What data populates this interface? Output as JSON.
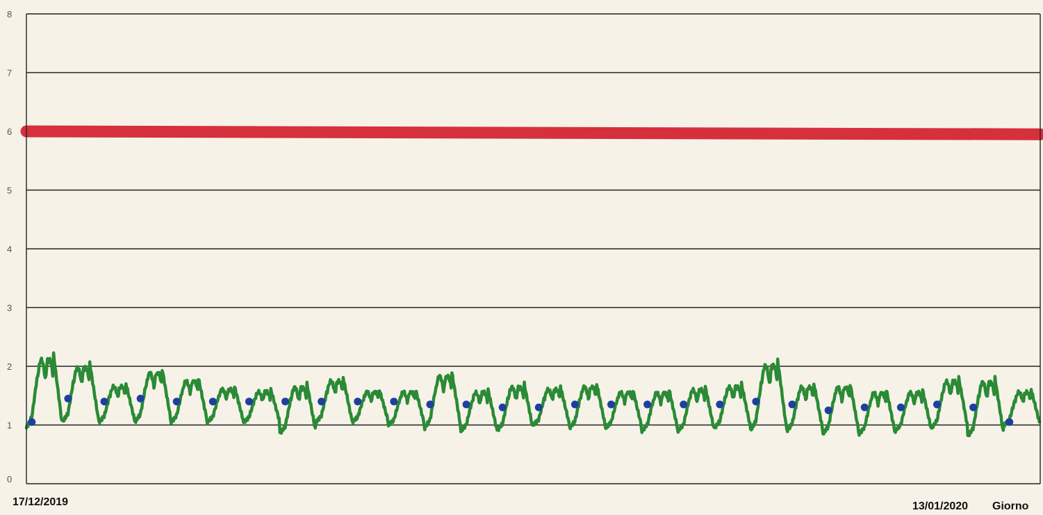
{
  "chart_data": {
    "type": "line",
    "title": "",
    "xlabel": "Giorno",
    "ylabel": "",
    "ylim": [
      0,
      8
    ],
    "yticks": [
      "0",
      "1",
      "2",
      "3",
      "4",
      "5",
      "6",
      "7",
      "8"
    ],
    "x_start_label": "17/12/2019",
    "x_end_label": "13/01/2020",
    "x_range": [
      "17/12/2019",
      "13/01/2020"
    ],
    "grid": true,
    "series": [
      {
        "color": "#d6303d",
        "x": [
          "17/12/2019",
          "13/01/2020"
        ],
        "values": [
          6.0,
          5.95
        ]
      },
      {
        "color": "#2a8a35",
        "x": [
          "17/12/2019",
          "18/12/2019",
          "19/12/2019",
          "20/12/2019",
          "21/12/2019",
          "22/12/2019",
          "23/12/2019",
          "24/12/2019",
          "25/12/2019",
          "26/12/2019",
          "27/12/2019",
          "28/12/2019",
          "29/12/2019",
          "30/12/2019",
          "31/12/2019",
          "01/01/2020",
          "02/01/2020",
          "03/01/2020",
          "04/01/2020",
          "05/01/2020",
          "06/01/2020",
          "07/01/2020",
          "08/01/2020",
          "09/01/2020",
          "10/01/2020",
          "11/01/2020",
          "12/01/2020",
          "13/01/2020"
        ],
        "daily_min": [
          0.95,
          1.05,
          1.05,
          1.05,
          1.05,
          1.05,
          1.05,
          0.85,
          1.05,
          1.05,
          1.0,
          0.95,
          0.9,
          0.9,
          1.0,
          0.95,
          0.95,
          0.9,
          0.9,
          0.95,
          0.9,
          0.9,
          0.85,
          0.85,
          0.9,
          0.95,
          0.8,
          1.0
        ],
        "daily_max": [
          2.2,
          2.05,
          1.7,
          1.95,
          1.8,
          1.65,
          1.6,
          1.7,
          1.8,
          1.6,
          1.6,
          1.9,
          1.6,
          1.7,
          1.65,
          1.7,
          1.6,
          1.6,
          1.65,
          1.7,
          2.1,
          1.7,
          1.7,
          1.6,
          1.6,
          1.8,
          1.8,
          1.6
        ]
      },
      {
        "color": "#1f3fa0",
        "marker": "point",
        "x": [
          "17/12/2019",
          "18/12/2019",
          "19/12/2019",
          "20/12/2019",
          "21/12/2019",
          "22/12/2019",
          "23/12/2019",
          "24/12/2019",
          "25/12/2019",
          "26/12/2019",
          "27/12/2019",
          "28/12/2019",
          "29/12/2019",
          "30/12/2019",
          "31/12/2019",
          "01/01/2020",
          "02/01/2020",
          "03/01/2020",
          "04/01/2020",
          "05/01/2020",
          "06/01/2020",
          "07/01/2020",
          "08/01/2020",
          "09/01/2020",
          "10/01/2020",
          "11/01/2020",
          "12/01/2020",
          "13/01/2020"
        ],
        "values": [
          1.05,
          1.45,
          1.4,
          1.45,
          1.4,
          1.4,
          1.4,
          1.4,
          1.4,
          1.4,
          1.4,
          1.35,
          1.35,
          1.3,
          1.3,
          1.35,
          1.35,
          1.35,
          1.35,
          1.35,
          1.4,
          1.35,
          1.25,
          1.3,
          1.3,
          1.35,
          1.3,
          1.05
        ]
      }
    ]
  }
}
